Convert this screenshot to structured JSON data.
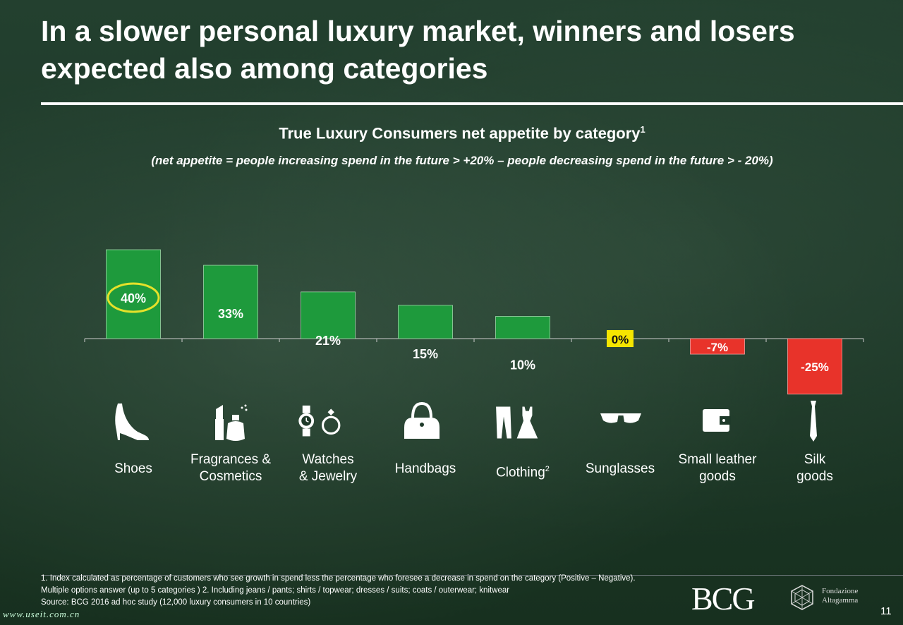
{
  "title": "In a slower personal luxury market, winners and losers expected also among categories",
  "chart_data": {
    "type": "bar",
    "title": "True Luxury Consumers net appetite by category",
    "title_sup": "1",
    "subtitle": "(net appetite = people increasing spend in the future > +20% – people decreasing spend in the future > - 20%)",
    "categories": [
      "Shoes",
      "Fragrances & Cosmetics",
      "Watches & Jewelry",
      "Handbags",
      "Clothing",
      "Sunglasses",
      "Small leather goods",
      "Silk goods"
    ],
    "values": [
      40,
      33,
      21,
      15,
      10,
      0,
      -7,
      -25
    ],
    "value_labels": [
      "40%",
      "33%",
      "21%",
      "15%",
      "10%",
      "0%",
      "-7%",
      "-25%"
    ],
    "colors": {
      "positive": "#1e9a3c",
      "zero": "#f5e500",
      "negative": "#e8332a",
      "highlight_ring": "#e5e12a"
    },
    "highlighted_index": 0,
    "grid": false,
    "legend": "none"
  },
  "categories_display": [
    {
      "line1": "Shoes",
      "line2": "",
      "sup": "",
      "icon": "shoe-icon"
    },
    {
      "line1": "Fragrances &",
      "line2": "Cosmetics",
      "sup": "",
      "icon": "perfume-lipstick-icon"
    },
    {
      "line1": "Watches",
      "line2": "& Jewelry",
      "sup": "",
      "icon": "watch-ring-icon"
    },
    {
      "line1": "Handbags",
      "line2": "",
      "sup": "",
      "icon": "handbag-icon"
    },
    {
      "line1": "Clothing",
      "line2": "",
      "sup": "2",
      "icon": "clothing-icon"
    },
    {
      "line1": "Sunglasses",
      "line2": "",
      "sup": "",
      "icon": "sunglasses-icon"
    },
    {
      "line1": "Small leather",
      "line2": "goods",
      "sup": "",
      "icon": "wallet-icon"
    },
    {
      "line1": "Silk",
      "line2": "goods",
      "sup": "",
      "icon": "tie-icon"
    }
  ],
  "footnotes": {
    "line1": "1. Index calculated as percentage of customers who see growth in spend less the percentage who foresee a decrease in spend on the category (Positive – Negative).",
    "line2": "Multiple options answer (up to 5 categories )    2. Including jeans / pants; shirts / topwear; dresses / suits; coats / outerwear; knitwear",
    "line3": "Source: BCG 2016 ad hoc study (12,000 luxury consumers in 10 countries)"
  },
  "logos": {
    "bcg": "BCG",
    "fondazione_line1": "Fondazione",
    "fondazione_line2": "Altagamma"
  },
  "page_number": "11",
  "watermark": "www.useit.com.cn"
}
